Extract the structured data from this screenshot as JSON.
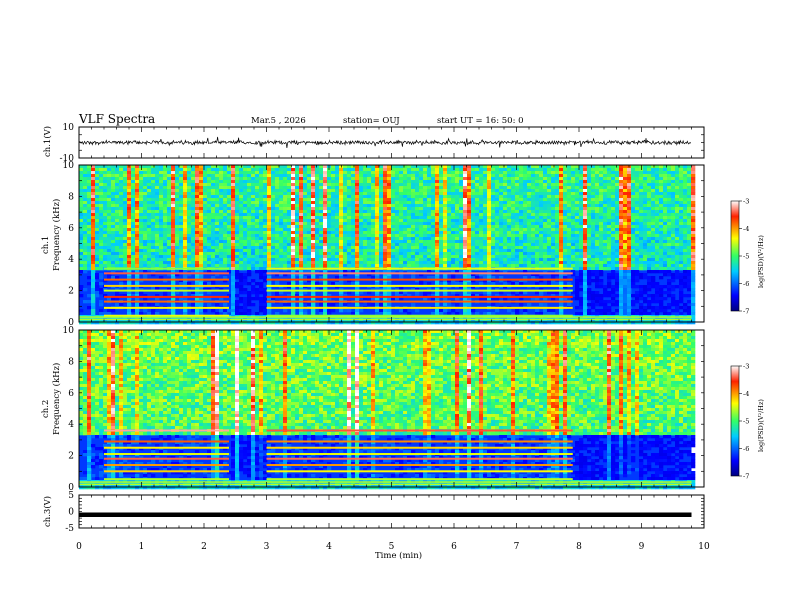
{
  "header": {
    "title": "VLF Spectra",
    "date": "Mar.5  , 2026",
    "station": "station= OUJ",
    "start": "start  UT =   16: 50: 0"
  },
  "chart_data": [
    {
      "type": "line",
      "id": "ch1-waveform",
      "ylabel": "ch.1(V)",
      "ylim": [
        -10,
        10
      ],
      "yticks": [
        "10",
        "-10"
      ],
      "xlim": [
        0,
        10
      ],
      "description_value": "broadband noise waveform centered at ~0 V"
    },
    {
      "type": "heatmap",
      "id": "ch1-spectrogram",
      "ylabel_top": "ch.1",
      "ylabel": "Frequency (kHz)",
      "ylim": [
        0,
        10
      ],
      "yticks": [
        "0",
        "2",
        "4",
        "6",
        "8",
        "10"
      ],
      "xlim": [
        0,
        10
      ],
      "colorbar": {
        "label": "log(PSD)(V²/Hz)",
        "range": [
          -7,
          -3
        ],
        "ticks": [
          "-3",
          "-4",
          "-5",
          "-6",
          "-7"
        ]
      },
      "bands_khz": [
        0.4,
        0.9,
        1.3,
        1.6,
        2.0,
        2.3,
        2.7,
        3.1,
        3.4
      ],
      "band_segments_min": [
        [
          0.4,
          2.4
        ],
        [
          3.0,
          7.9
        ]
      ]
    },
    {
      "type": "heatmap",
      "id": "ch2-spectrogram",
      "ylabel_top": "ch.2",
      "ylabel": "Frequency (kHz)",
      "ylim": [
        0,
        10
      ],
      "yticks": [
        "0",
        "2",
        "4",
        "6",
        "8",
        "10"
      ],
      "xlim": [
        0,
        10
      ],
      "colorbar": {
        "label": "log(PSD)(V²/Hz)",
        "range": [
          -7,
          -3
        ],
        "ticks": [
          "-3",
          "-4",
          "-5",
          "-6",
          "-7"
        ]
      },
      "bands_khz": [
        0.5,
        1.0,
        1.4,
        1.8,
        2.1,
        2.5,
        2.9,
        3.6
      ],
      "band_segments_min": [
        [
          0.4,
          2.4
        ],
        [
          3.0,
          7.9
        ]
      ]
    },
    {
      "type": "line",
      "id": "ch3-waveform",
      "ylabel": "ch.3(V)",
      "ylim": [
        -5,
        5
      ],
      "yticks": [
        "5",
        "0",
        "-5"
      ],
      "xlim": [
        0,
        10
      ],
      "constant_value": -1
    }
  ],
  "xaxis": {
    "label": "Time (min)",
    "ticks": [
      "0",
      "1",
      "2",
      "3",
      "4",
      "5",
      "6",
      "7",
      "8",
      "9",
      "10"
    ]
  },
  "colors": {
    "background": "#ffffff",
    "axis": "#000000"
  }
}
